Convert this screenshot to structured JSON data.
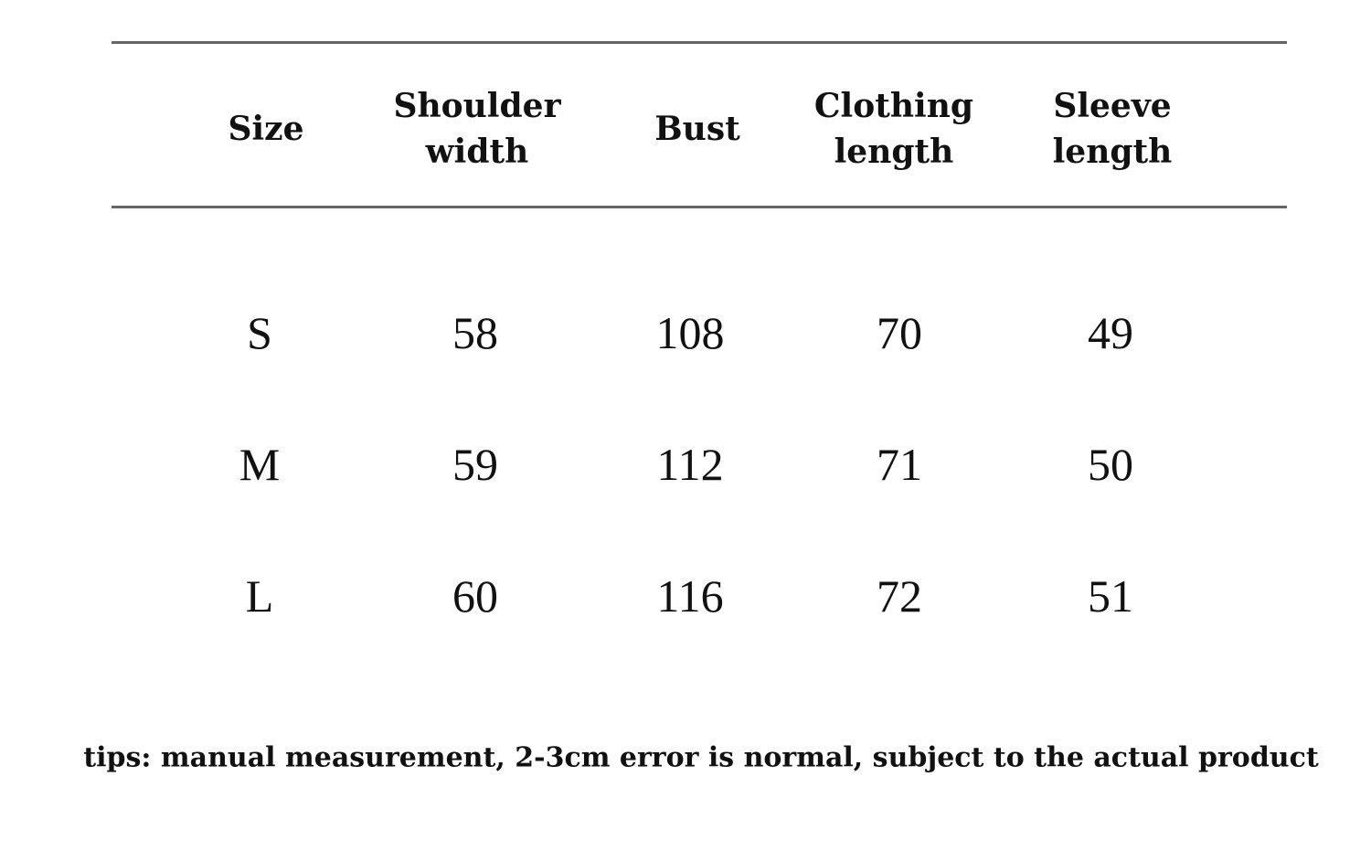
{
  "table": {
    "header": [
      "Size",
      "Shoulder width",
      "Bust",
      "Clothing length",
      "Sleeve length"
    ],
    "rows": [
      [
        "S",
        58,
        108,
        70,
        49
      ],
      [
        "M",
        59,
        112,
        71,
        50
      ],
      [
        "L",
        60,
        116,
        72,
        51
      ]
    ]
  },
  "footer": {
    "tips": "tips: manual measurement, 2-3cm error is normal, subject to the actual product"
  }
}
